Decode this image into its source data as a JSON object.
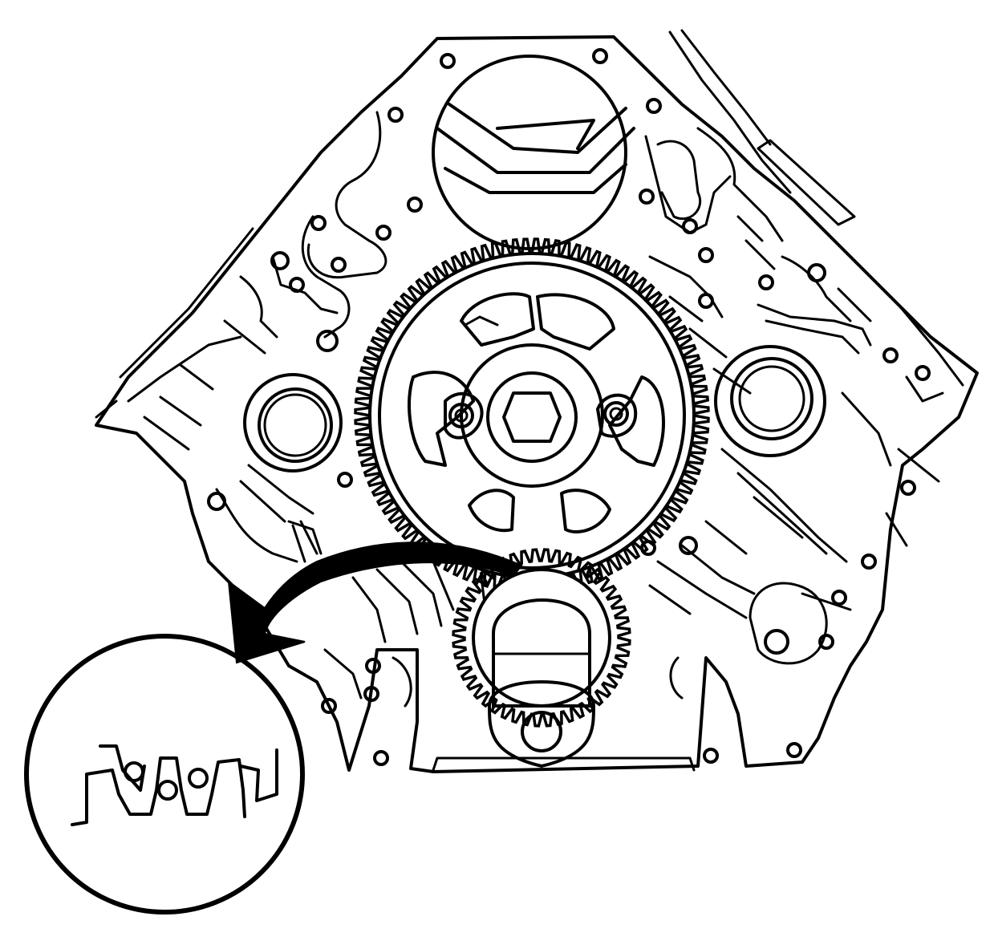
{
  "figure": {
    "subject": "engine-block-front-view-timing-gears",
    "stroke_color": "#000000",
    "background_color": "#ffffff"
  },
  "camshaft_gear": {
    "tooth_count": 104
  },
  "crankshaft_gear": {
    "tooth_count": 48
  },
  "detail_inset": {
    "timing_mark_dots": 3
  },
  "rotation_arrow": {
    "direction": "counterclockwise",
    "color": "#000000"
  }
}
